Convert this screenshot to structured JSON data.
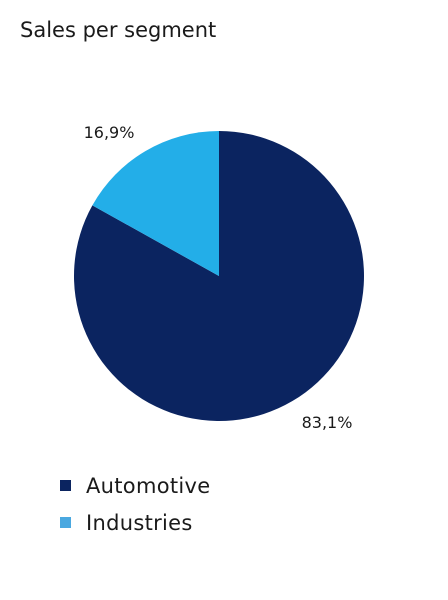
{
  "chart_data": {
    "type": "pie",
    "title": "Sales per segment",
    "categories": [
      "Automotive",
      "Industries"
    ],
    "values": [
      83.1,
      16.9
    ],
    "value_labels": [
      "83,1%",
      "16,9%"
    ],
    "colors": [
      "#0b2460",
      "#23aee8"
    ],
    "legend_colors": [
      "#0b2460",
      "#4aa8e0"
    ],
    "legend_placement": "bottom-left",
    "start_angle": "12 o'clock",
    "direction": "clockwise"
  }
}
